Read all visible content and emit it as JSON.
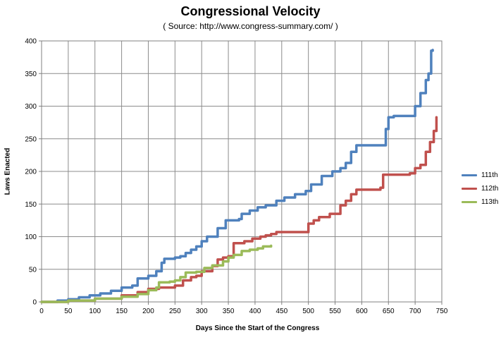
{
  "chart_data": {
    "type": "line",
    "title": "Congressional Velocity",
    "subtitle": "( Source: http://www.congress-summary.com/ )",
    "xlabel": "Days Since the Start of the Congress",
    "ylabel": "Laws Enacted",
    "xlim": [
      0,
      750
    ],
    "ylim": [
      0,
      400
    ],
    "x_ticks": [
      0,
      50,
      100,
      150,
      200,
      250,
      300,
      350,
      400,
      450,
      500,
      550,
      600,
      650,
      700,
      750
    ],
    "y_ticks": [
      0,
      50,
      100,
      150,
      200,
      250,
      300,
      350,
      400
    ],
    "grid": true,
    "legend_position": "right",
    "series": [
      {
        "name": "111th",
        "color": "#4f81bd",
        "points": [
          [
            0,
            0
          ],
          [
            30,
            2
          ],
          [
            50,
            4
          ],
          [
            70,
            7
          ],
          [
            90,
            10
          ],
          [
            110,
            13
          ],
          [
            130,
            17
          ],
          [
            150,
            22
          ],
          [
            170,
            25
          ],
          [
            180,
            36
          ],
          [
            200,
            40
          ],
          [
            215,
            47
          ],
          [
            225,
            60
          ],
          [
            230,
            66
          ],
          [
            250,
            68
          ],
          [
            260,
            70
          ],
          [
            270,
            75
          ],
          [
            280,
            80
          ],
          [
            290,
            85
          ],
          [
            300,
            93
          ],
          [
            310,
            100
          ],
          [
            330,
            113
          ],
          [
            345,
            125
          ],
          [
            370,
            127
          ],
          [
            375,
            135
          ],
          [
            390,
            140
          ],
          [
            405,
            145
          ],
          [
            420,
            148
          ],
          [
            440,
            155
          ],
          [
            455,
            160
          ],
          [
            475,
            165
          ],
          [
            495,
            170
          ],
          [
            505,
            180
          ],
          [
            525,
            193
          ],
          [
            545,
            200
          ],
          [
            560,
            205
          ],
          [
            570,
            213
          ],
          [
            580,
            230
          ],
          [
            590,
            240
          ],
          [
            635,
            240
          ],
          [
            645,
            265
          ],
          [
            650,
            283
          ],
          [
            660,
            285
          ],
          [
            690,
            285
          ],
          [
            700,
            300
          ],
          [
            710,
            320
          ],
          [
            720,
            340
          ],
          [
            725,
            350
          ],
          [
            730,
            385
          ],
          [
            733,
            386
          ]
        ]
      },
      {
        "name": "112th",
        "color": "#c0504d",
        "points": [
          [
            0,
            0
          ],
          [
            50,
            2
          ],
          [
            100,
            5
          ],
          [
            150,
            10
          ],
          [
            180,
            15
          ],
          [
            200,
            20
          ],
          [
            220,
            22
          ],
          [
            250,
            25
          ],
          [
            265,
            33
          ],
          [
            280,
            38
          ],
          [
            290,
            40
          ],
          [
            300,
            47
          ],
          [
            320,
            55
          ],
          [
            330,
            65
          ],
          [
            340,
            68
          ],
          [
            350,
            70
          ],
          [
            360,
            90
          ],
          [
            380,
            93
          ],
          [
            395,
            97
          ],
          [
            410,
            100
          ],
          [
            420,
            102
          ],
          [
            430,
            104
          ],
          [
            440,
            107
          ],
          [
            495,
            107
          ],
          [
            500,
            120
          ],
          [
            510,
            125
          ],
          [
            520,
            130
          ],
          [
            540,
            135
          ],
          [
            560,
            148
          ],
          [
            570,
            155
          ],
          [
            580,
            165
          ],
          [
            590,
            172
          ],
          [
            635,
            175
          ],
          [
            640,
            195
          ],
          [
            690,
            197
          ],
          [
            700,
            205
          ],
          [
            710,
            210
          ],
          [
            720,
            230
          ],
          [
            728,
            245
          ],
          [
            735,
            262
          ],
          [
            740,
            283
          ]
        ]
      },
      {
        "name": "113th",
        "color": "#9bbb59",
        "points": [
          [
            0,
            0
          ],
          [
            50,
            2
          ],
          [
            100,
            5
          ],
          [
            150,
            8
          ],
          [
            180,
            12
          ],
          [
            200,
            18
          ],
          [
            215,
            22
          ],
          [
            220,
            30
          ],
          [
            240,
            31
          ],
          [
            250,
            33
          ],
          [
            260,
            38
          ],
          [
            270,
            45
          ],
          [
            290,
            46
          ],
          [
            305,
            52
          ],
          [
            320,
            56
          ],
          [
            340,
            62
          ],
          [
            350,
            68
          ],
          [
            360,
            72
          ],
          [
            370,
            72
          ],
          [
            375,
            78
          ],
          [
            390,
            80
          ],
          [
            405,
            82
          ],
          [
            415,
            85
          ],
          [
            430,
            86
          ]
        ]
      }
    ]
  }
}
